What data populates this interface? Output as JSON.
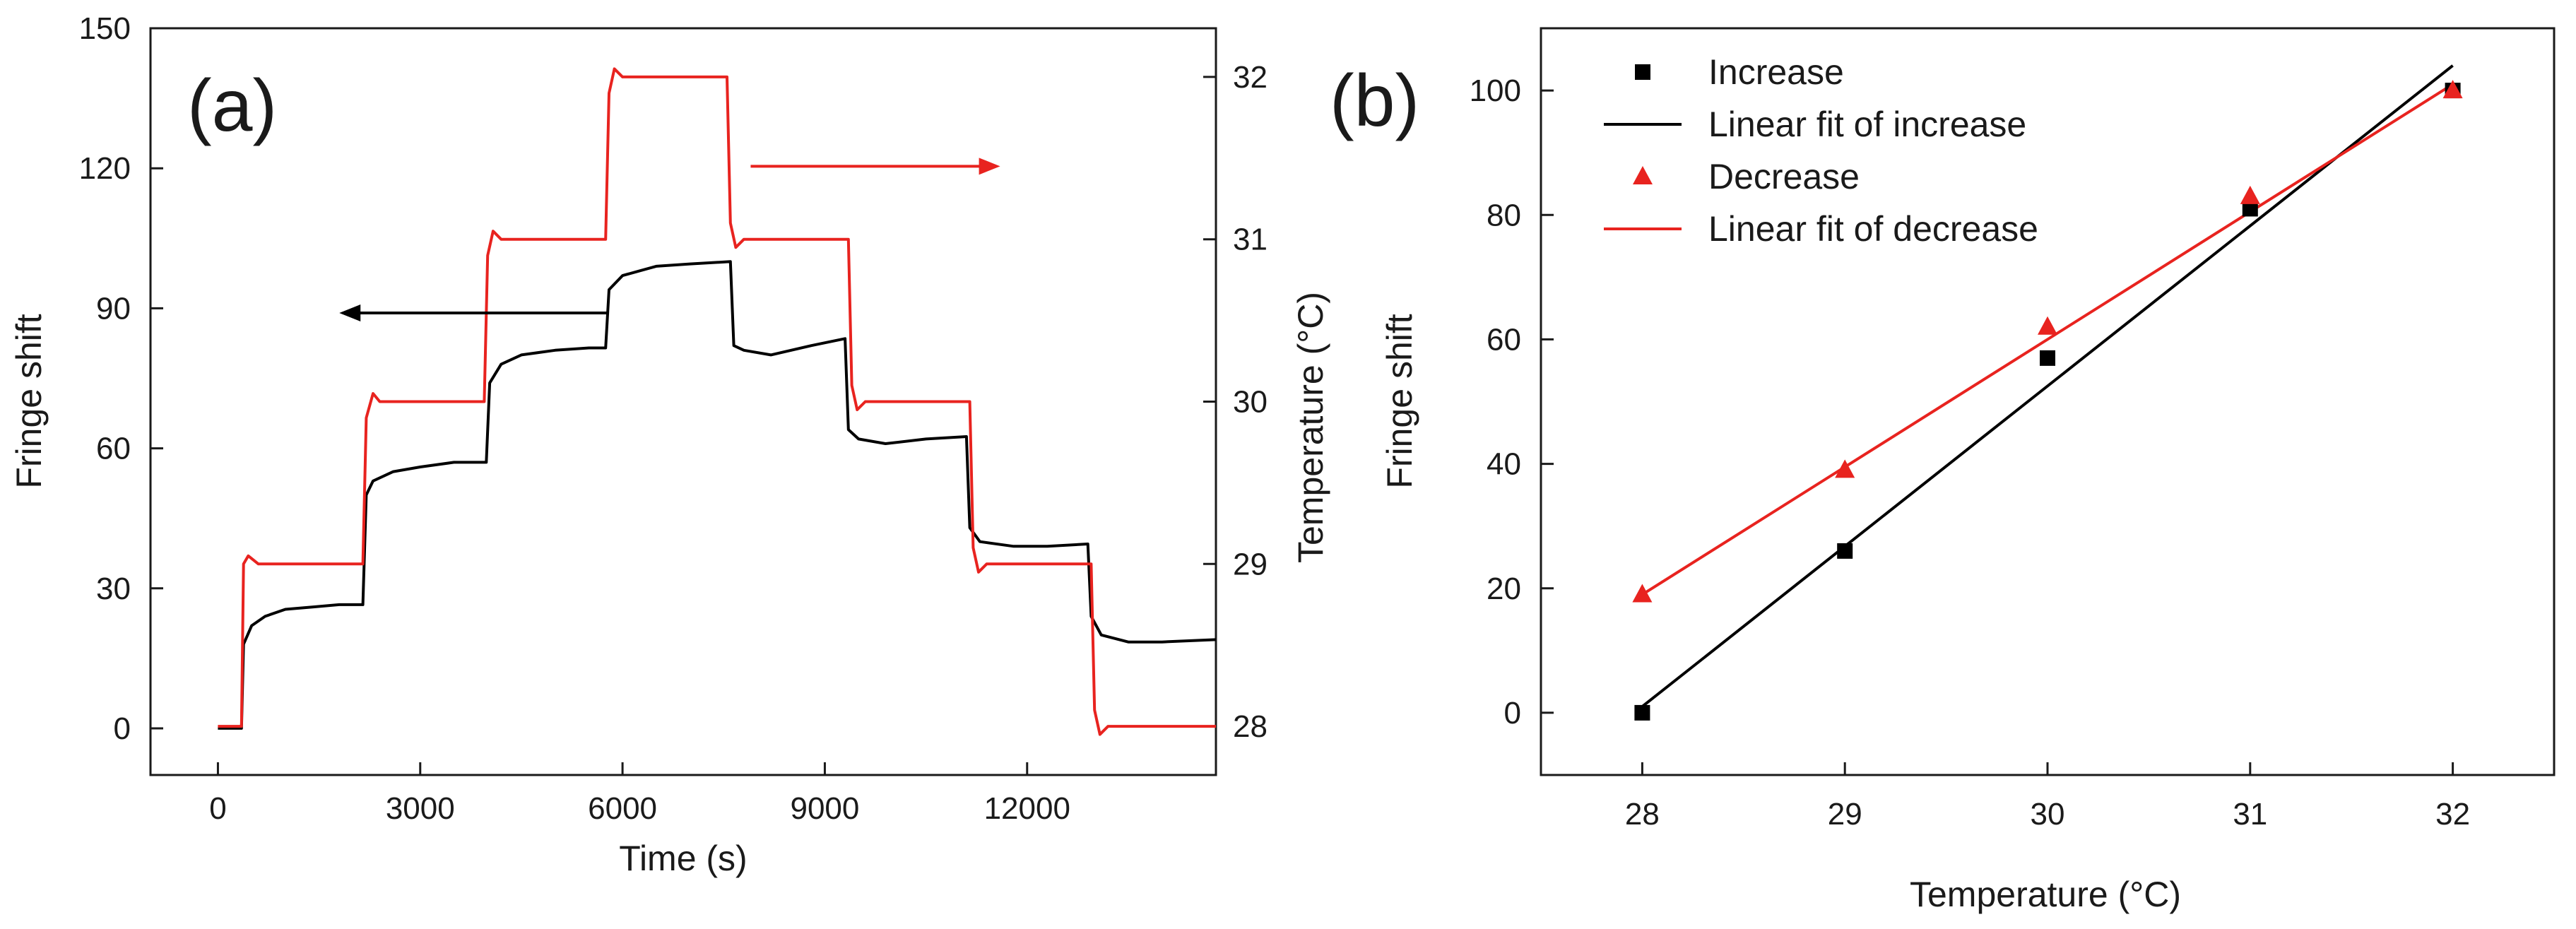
{
  "chart_data": [
    {
      "panel_label": "(a)",
      "type": "line",
      "xlabel": "Time (s)",
      "ylabel_left": "Fringe shift",
      "ylabel_right": "Temperature (°C)",
      "xlim": [
        -1000,
        14800
      ],
      "ylim_left": [
        -10,
        150
      ],
      "ylim_right": [
        27.7,
        32.3
      ],
      "x_ticks": [
        0,
        3000,
        6000,
        9000,
        12000
      ],
      "y_ticks_left": [
        0,
        30,
        60,
        90,
        120,
        150
      ],
      "y_ticks_right": [
        28,
        29,
        30,
        31,
        32
      ],
      "grid": false,
      "series": [
        {
          "axis": "left",
          "color": "#000000",
          "x": [
            0,
            350,
            380,
            500,
            700,
            1000,
            1400,
            1800,
            2150,
            2200,
            2300,
            2600,
            3000,
            3500,
            3980,
            4030,
            4200,
            4500,
            5000,
            5500,
            5750,
            5800,
            6000,
            6500,
            7000,
            7600,
            7650,
            7800,
            8200,
            8800,
            9300,
            9350,
            9500,
            9900,
            10500,
            11100,
            11150,
            11300,
            11800,
            12300,
            12900,
            12950,
            13100,
            13500,
            14000,
            14800
          ],
          "y": [
            0,
            0,
            18,
            22,
            24,
            25.5,
            26,
            26.5,
            26.5,
            50,
            53,
            55,
            56,
            57,
            57,
            74,
            78,
            80,
            81,
            81.5,
            81.5,
            94,
            97,
            99,
            99.5,
            100,
            82,
            81,
            80,
            82,
            83.5,
            64,
            62,
            61,
            62,
            62.5,
            43,
            40,
            39,
            39,
            39.5,
            24,
            20,
            18.5,
            18.5,
            19
          ]
        },
        {
          "axis": "right",
          "color": "#e8231f",
          "x": [
            0,
            350,
            380,
            450,
            600,
            2150,
            2200,
            2300,
            2400,
            3950,
            4000,
            4080,
            4200,
            5750,
            5800,
            5880,
            6000,
            7550,
            7600,
            7680,
            7800,
            9350,
            9400,
            9480,
            9600,
            11150,
            11200,
            11280,
            11400,
            12950,
            13000,
            13080,
            13200,
            14800
          ],
          "y": [
            28,
            28,
            29.0,
            29.05,
            29.0,
            29.0,
            29.9,
            30.05,
            30.0,
            30.0,
            30.9,
            31.05,
            31.0,
            31.0,
            31.9,
            32.05,
            32.0,
            32.0,
            31.1,
            30.95,
            31.0,
            31.0,
            30.1,
            29.95,
            30.0,
            30.0,
            29.1,
            28.95,
            29.0,
            29.0,
            28.1,
            27.95,
            28.0,
            28.0
          ]
        }
      ],
      "annotations": [
        {
          "type": "arrow",
          "direction": "left",
          "color": "#000000",
          "x": [
            5800,
            1800
          ],
          "y": 89,
          "axis": "left"
        },
        {
          "type": "arrow",
          "direction": "right",
          "color": "#e8231f",
          "x": [
            7900,
            11600
          ],
          "y": 31.45,
          "axis": "right"
        }
      ]
    },
    {
      "panel_label": "(b)",
      "type": "scatter",
      "xlabel": "Temperature (°C)",
      "ylabel": "Fringe shift",
      "xlim": [
        27.5,
        32.5
      ],
      "ylim": [
        -10,
        110
      ],
      "x_ticks": [
        28,
        29,
        30,
        31,
        32
      ],
      "y_ticks": [
        0,
        20,
        40,
        60,
        80,
        100
      ],
      "grid": false,
      "legend_placement": "top-left",
      "series": [
        {
          "name": "Increase",
          "marker": "square",
          "color": "#000000",
          "x": [
            28,
            29,
            30,
            31,
            32
          ],
          "y": [
            0,
            26,
            57,
            81,
            100
          ]
        },
        {
          "name": "Linear fit of increase",
          "kind": "line",
          "color": "#000000",
          "x": [
            28,
            32
          ],
          "y": [
            1,
            104
          ]
        },
        {
          "name": "Decrease",
          "marker": "triangle",
          "color": "#e8231f",
          "x": [
            28,
            29,
            30,
            31,
            32
          ],
          "y": [
            19,
            39,
            62,
            83,
            100
          ]
        },
        {
          "name": "Linear fit of decrease",
          "kind": "line",
          "color": "#e8231f",
          "x": [
            28,
            32
          ],
          "y": [
            19,
            101
          ]
        }
      ]
    }
  ]
}
